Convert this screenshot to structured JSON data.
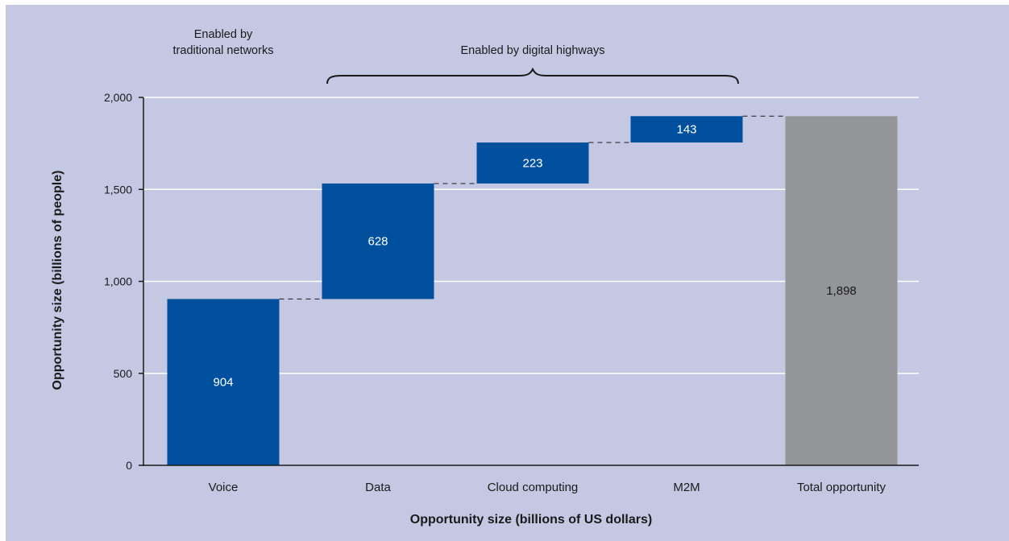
{
  "chart_data": {
    "type": "waterfall",
    "categories": [
      "Voice",
      "Data",
      "Cloud computing",
      "M2M",
      "Total opportunity"
    ],
    "values": [
      904,
      628,
      223,
      143,
      1898
    ],
    "value_labels": [
      "904",
      "628",
      "223",
      "143",
      "1,898"
    ],
    "kinds": [
      "increment",
      "increment",
      "increment",
      "increment",
      "total"
    ],
    "xlabel": "Opportunity size (billions of US dollars)",
    "ylabel": "Opportunity size (billions of people)",
    "ylim": [
      0,
      2000
    ],
    "yticks": [
      0,
      500,
      1000,
      1500,
      2000
    ],
    "ytick_labels": [
      "0",
      "500",
      "1,000",
      "1,500",
      "2,000"
    ],
    "grid": true,
    "connectors": "dashed",
    "annotations": {
      "traditional_line1": "Enabled by",
      "traditional_line2": "traditional networks",
      "digital": "Enabled by digital highways"
    }
  },
  "colors": {
    "background": "#c5c8e3",
    "increment": "#00509d",
    "total": "#939598",
    "grid": "#ffffff",
    "axis": "#1a1a1a",
    "increment_label": "#ffffff",
    "total_label": "#1a1a1a"
  }
}
